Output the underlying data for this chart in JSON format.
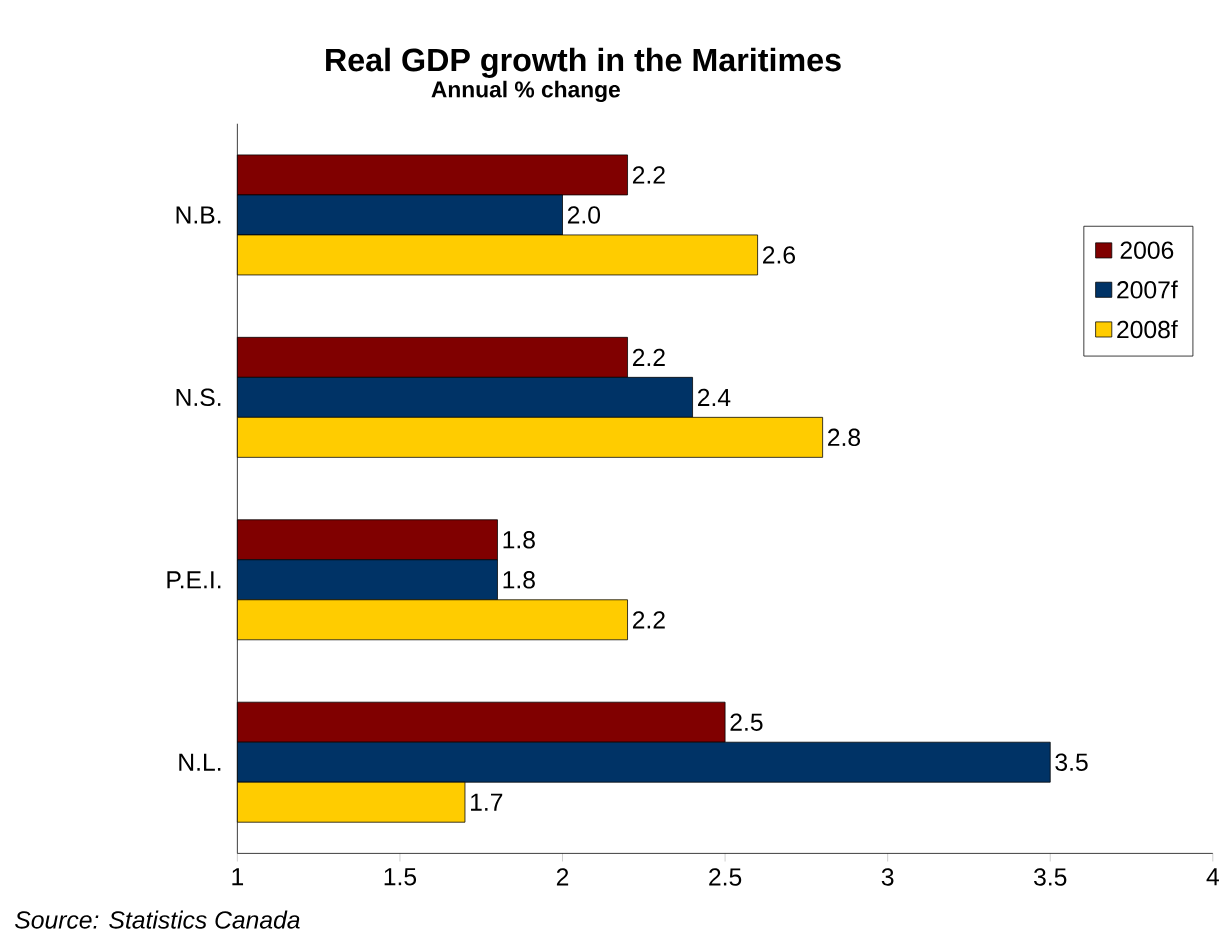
{
  "chart_data": {
    "type": "bar",
    "orientation": "horizontal",
    "title": "Real GDP growth in the Maritimes",
    "subtitle": "Annual % change",
    "categories": [
      "N.B.",
      "N.S.",
      "P.E.I.",
      "N.L."
    ],
    "series": [
      {
        "name": "2006",
        "color": "#800000",
        "values": [
          2.2,
          2.2,
          1.8,
          2.5
        ],
        "value_labels": [
          "2.2",
          "2.2",
          "1.8",
          "2.5"
        ]
      },
      {
        "name": "2007f",
        "color": "#003366",
        "values": [
          2.0,
          2.4,
          1.8,
          3.5
        ],
        "value_labels": [
          "2.0",
          "2.4",
          "1.8",
          "3.5"
        ]
      },
      {
        "name": "2008f",
        "color": "#ffcc00",
        "values": [
          2.6,
          2.8,
          2.2,
          1.7
        ],
        "value_labels": [
          "2.6",
          "2.8",
          "2.2",
          "1.7"
        ]
      }
    ],
    "xlim": [
      1,
      4
    ],
    "xticks": [
      1,
      1.5,
      2,
      2.5,
      3,
      3.5,
      4
    ],
    "grid": false,
    "legend": "top right",
    "annotations": [
      "Source: Statistics Canada"
    ]
  }
}
